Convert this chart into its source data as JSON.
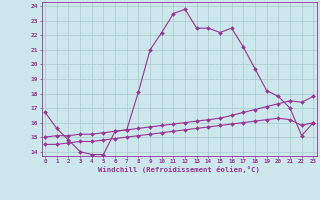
{
  "xlabel": "Windchill (Refroidissement éolien,°C)",
  "bg_color": "#cce8ec",
  "grid_color": "#aacccc",
  "line_color": "#993399",
  "hours": [
    0,
    1,
    2,
    3,
    4,
    5,
    6,
    7,
    8,
    9,
    10,
    11,
    12,
    13,
    14,
    15,
    16,
    17,
    18,
    19,
    20,
    21,
    22,
    23
  ],
  "temp": [
    16.7,
    15.6,
    14.8,
    14.0,
    13.8,
    13.8,
    15.4,
    15.5,
    18.1,
    21.0,
    22.2,
    23.5,
    23.8,
    22.5,
    22.5,
    22.2,
    22.5,
    21.2,
    19.7,
    18.2,
    17.8,
    17.0,
    15.1,
    16.0
  ],
  "line2": [
    15.0,
    15.1,
    15.1,
    15.2,
    15.2,
    15.3,
    15.4,
    15.5,
    15.6,
    15.7,
    15.8,
    15.9,
    16.0,
    16.1,
    16.2,
    16.3,
    16.5,
    16.7,
    16.9,
    17.1,
    17.3,
    17.5,
    17.4,
    17.8
  ],
  "line3": [
    14.5,
    14.5,
    14.6,
    14.7,
    14.7,
    14.8,
    14.9,
    15.0,
    15.1,
    15.2,
    15.3,
    15.4,
    15.5,
    15.6,
    15.7,
    15.8,
    15.9,
    16.0,
    16.1,
    16.2,
    16.3,
    16.2,
    15.8,
    16.0
  ],
  "ylim": [
    13.7,
    24.3
  ],
  "yticks": [
    14,
    15,
    16,
    17,
    18,
    19,
    20,
    21,
    22,
    23,
    24
  ],
  "xlim": [
    -0.3,
    23.3
  ]
}
